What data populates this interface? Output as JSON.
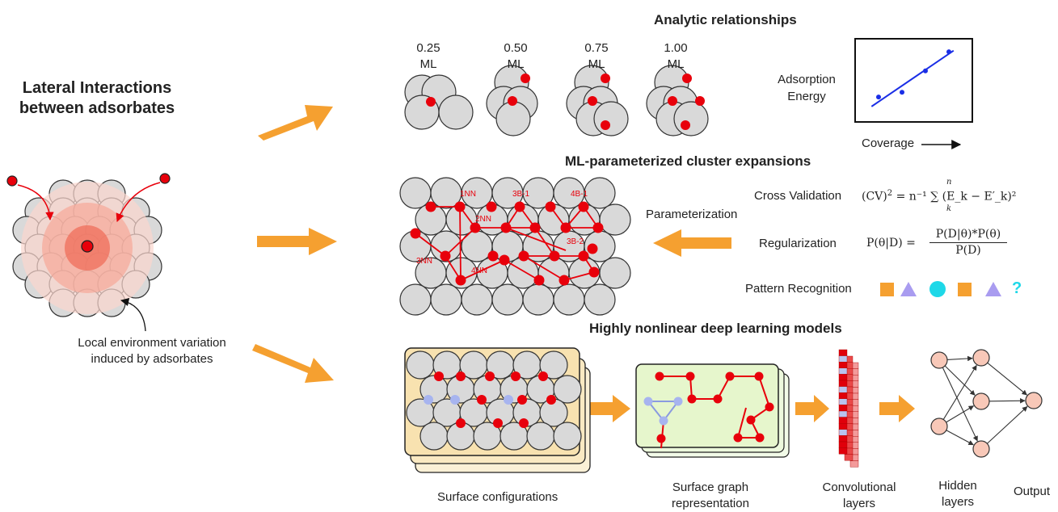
{
  "left": {
    "title_line1": "Lateral Interactions",
    "title_line2": "between adsorbates",
    "caption_line1": "Local environment variation",
    "caption_line2": "induced by adsorbates"
  },
  "analytic": {
    "title": "Analytic relationships",
    "coverages": [
      {
        "value": "0.25",
        "unit": "ML"
      },
      {
        "value": "0.50",
        "unit": "ML"
      },
      {
        "value": "0.75",
        "unit": "ML"
      },
      {
        "value": "1.00",
        "unit": "ML"
      }
    ],
    "plot": {
      "ylabel_line1": "Adsorption",
      "ylabel_line2": "Energy",
      "xlabel": "Coverage",
      "points": [
        [
          1,
          2.1
        ],
        [
          2,
          2.5
        ],
        [
          3,
          4.3
        ],
        [
          4,
          5.9
        ]
      ],
      "fit": [
        [
          0.7,
          1.3
        ],
        [
          4.2,
          6.0
        ]
      ]
    }
  },
  "ml_cluster": {
    "title": "ML-parameterized cluster expansions",
    "parameterization_label": "Parameterization",
    "cluster_labels": [
      "1NN",
      "2NN",
      "3NN",
      "4NN",
      "3B-1",
      "4B-1",
      "3B-2"
    ],
    "cross_validation": {
      "label": "Cross Validation",
      "formula_lhs": "(CV)",
      "formula_rhs": "= n⁻¹ ∑ (E_k − E′_k)²",
      "sum_top": "n",
      "sum_bottom": "k"
    },
    "regularization": {
      "label": "Regularization",
      "lhs": "P(θ|D) =",
      "numerator": "P(D|θ)*P(θ)",
      "denominator": "P(D)"
    },
    "pattern": {
      "label": "Pattern Recognition",
      "question_mark": "?",
      "shapes": [
        "square-icon",
        "triangle-icon",
        "circle-icon",
        "square-icon",
        "triangle-icon",
        "question-icon"
      ]
    }
  },
  "deep": {
    "title": "Highly nonlinear deep learning models",
    "labels": {
      "surface_configurations": "Surface configurations",
      "graph_line1": "Surface graph",
      "graph_line2": "representation",
      "conv_line1": "Convolutional",
      "conv_line2": "layers",
      "hidden_line1": "Hidden",
      "hidden_line2": "layers",
      "output": "Output"
    }
  },
  "colors": {
    "adsorbate_red": "#e8000b",
    "atom_gray": "#d9d9d9",
    "arrow_orange": "#f5a030",
    "blue_node": "#a7b4ef",
    "conf_bg": "#f8e2b0",
    "graph_bg": "#e6f6cc",
    "neuron": "#f8c8b8",
    "cyan": "#1ed8e8",
    "purple": "#a99cf0"
  }
}
